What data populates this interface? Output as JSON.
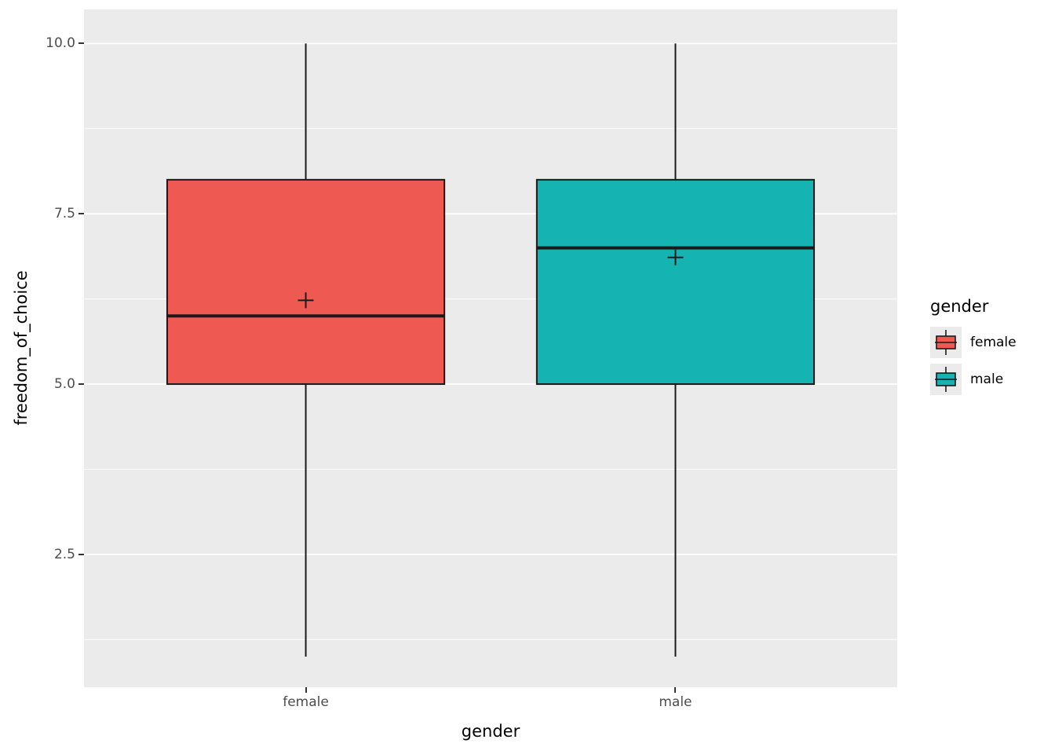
{
  "figure": {
    "background": "#FFFFFF",
    "panel_background": "#EBEBEB",
    "grid_color": "#FFFFFF",
    "tick_text_color": "#4D4D4D",
    "axis_title_color": "#000000",
    "box_stroke_color": "#1A1A1A"
  },
  "chart_data": {
    "type": "boxplot",
    "title": "",
    "xlabel": "gender",
    "ylabel": "freedom_of_choice",
    "categories": [
      "female",
      "male"
    ],
    "y_ticks": [
      2.5,
      5.0,
      7.5,
      10.0
    ],
    "y_tick_labels": [
      "2.5",
      "5.0",
      "7.5",
      "10.0"
    ],
    "y_minor_ticks": [
      1.25,
      3.75,
      6.25,
      8.75
    ],
    "ylim": [
      0.55,
      10.5
    ],
    "grid": true,
    "series": [
      {
        "name": "female",
        "fill": "#EE5A52",
        "whisker_low": 1.0,
        "q1": 5.0,
        "median": 6.0,
        "q3": 8.0,
        "whisker_high": 10.0,
        "mean": 6.23
      },
      {
        "name": "male",
        "fill": "#16B3B3",
        "whisker_low": 1.0,
        "q1": 5.0,
        "median": 7.0,
        "q3": 8.0,
        "whisker_high": 10.0,
        "mean": 6.86
      }
    ],
    "legend": {
      "title": "gender",
      "position": "right",
      "entries": [
        {
          "label": "female",
          "color": "#EE5A52"
        },
        {
          "label": "male",
          "color": "#16B3B3"
        }
      ]
    }
  }
}
